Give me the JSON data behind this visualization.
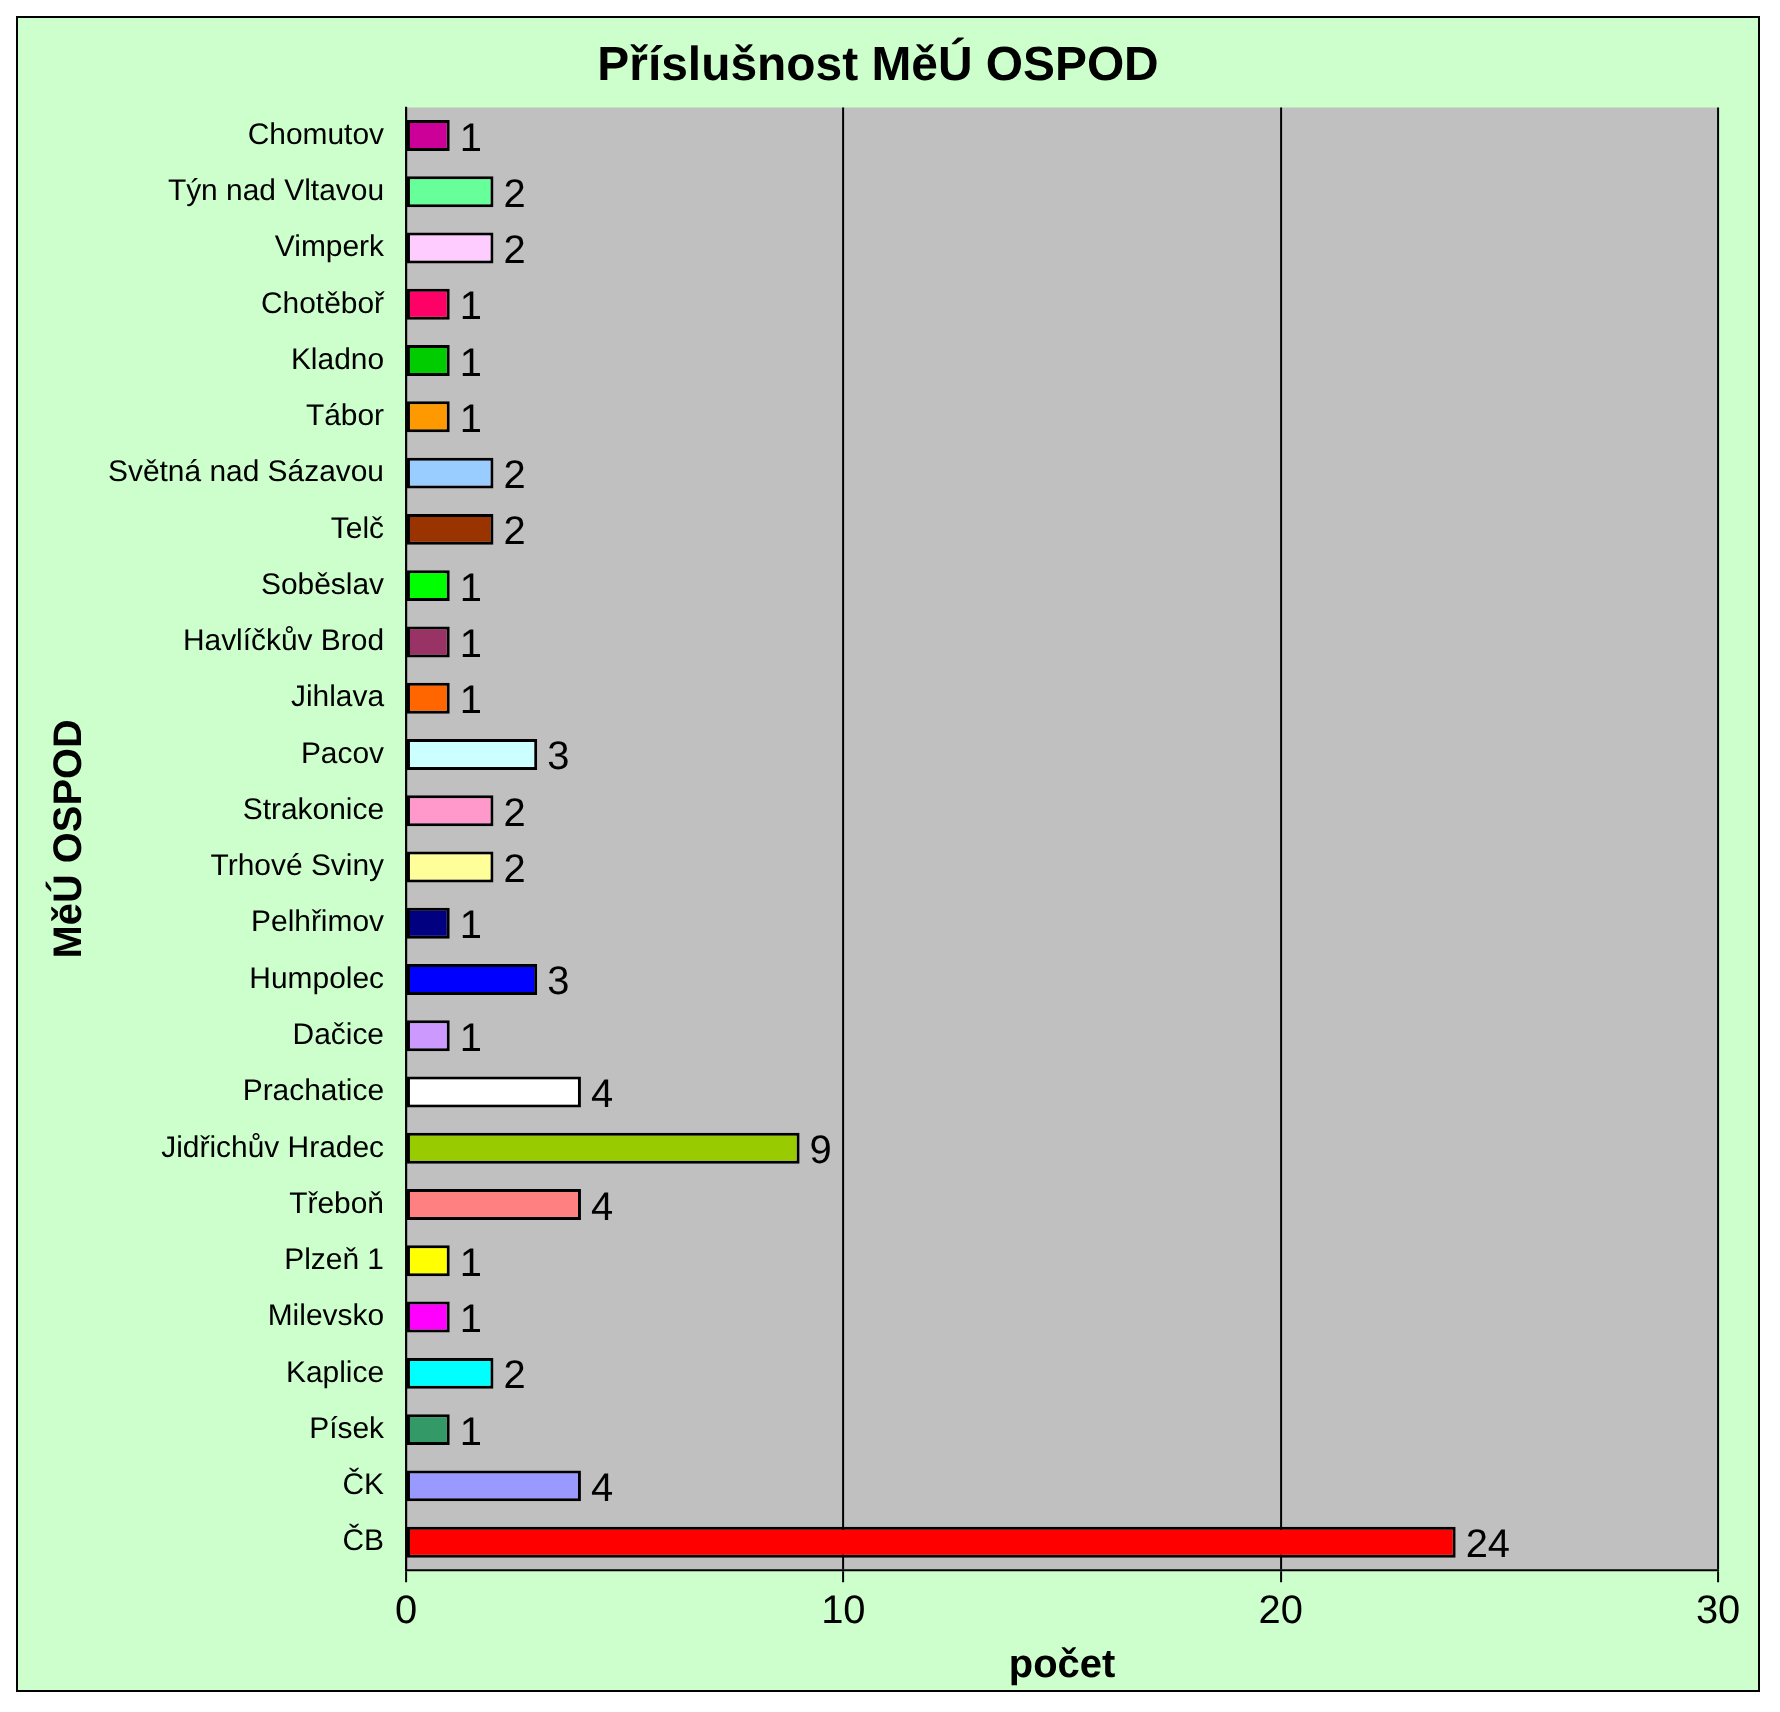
{
  "chart_data": {
    "type": "bar",
    "orientation": "horizontal",
    "title": "Příslušnost MěÚ OSPOD",
    "xlabel": "počet",
    "ylabel": "MěÚ OSPOD",
    "categories": [
      "Chomutov",
      "Týn nad Vltavou",
      "Vimperk",
      "Chotěboř",
      "Kladno",
      "Tábor",
      "Světná nad Sázavou",
      "Telč",
      "Soběslav",
      "Havlíčkův Brod",
      "Jihlava",
      "Pacov",
      "Strakonice",
      "Trhové Sviny",
      "Pelhřimov",
      "Humpolec",
      "Dačice",
      "Prachatice",
      "Jidřichův Hradec",
      "Třeboň",
      "Plzeň 1",
      "Milevsko",
      "Kaplice",
      "Písek",
      "ČK",
      "ČB"
    ],
    "values": [
      1,
      2,
      2,
      1,
      1,
      1,
      2,
      2,
      1,
      1,
      1,
      3,
      2,
      2,
      1,
      3,
      1,
      4,
      9,
      4,
      1,
      1,
      2,
      1,
      4,
      24
    ],
    "colors": [
      "#cc0099",
      "#66ff99",
      "#ffccff",
      "#ff0066",
      "#00cc00",
      "#ff9900",
      "#99ccff",
      "#993300",
      "#00ff00",
      "#993366",
      "#ff6600",
      "#ccffff",
      "#ff99cc",
      "#ffff99",
      "#000080",
      "#0000ff",
      "#cc99ff",
      "#ffffff",
      "#99cc00",
      "#ff8080",
      "#ffff00",
      "#ff00ff",
      "#00ffff",
      "#339966",
      "#9999ff",
      "#ff0000"
    ],
    "xlim": [
      0,
      30
    ],
    "xticks": [
      0,
      10,
      20,
      30
    ],
    "grid": "x",
    "data_labels": true,
    "legend": false
  }
}
